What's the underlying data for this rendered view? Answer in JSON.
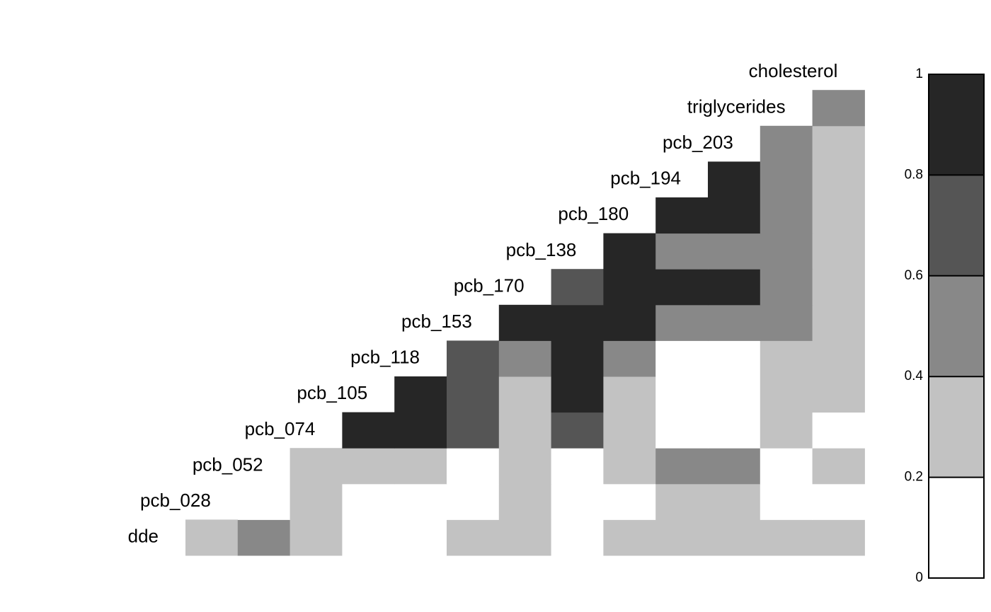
{
  "chart_data": {
    "type": "heatmap",
    "labels": [
      "dde",
      "pcb_028",
      "pcb_052",
      "pcb_074",
      "pcb_105",
      "pcb_118",
      "pcb_153",
      "pcb_170",
      "pcb_138",
      "pcb_180",
      "pcb_194",
      "pcb_203",
      "triglycerides",
      "cholesterol"
    ],
    "values": [
      [
        0.3,
        0.5,
        0.3,
        0.1,
        0.1,
        0.3,
        0.3,
        0.1,
        0.3,
        0.3,
        0.3,
        0.3,
        0.3
      ],
      [
        null,
        0.1,
        0.3,
        0.1,
        0.1,
        0.1,
        0.3,
        0.1,
        0.1,
        0.3,
        0.3,
        0.1,
        0.1
      ],
      [
        null,
        null,
        0.3,
        0.3,
        0.3,
        0.1,
        0.3,
        0.1,
        0.3,
        0.5,
        0.5,
        0.1,
        0.3
      ],
      [
        null,
        null,
        null,
        0.9,
        0.9,
        0.7,
        0.3,
        0.7,
        0.3,
        0.1,
        0.1,
        0.3,
        0.1
      ],
      [
        null,
        null,
        null,
        null,
        0.9,
        0.7,
        0.3,
        0.9,
        0.3,
        0.1,
        0.1,
        0.3,
        0.3
      ],
      [
        null,
        null,
        null,
        null,
        null,
        0.7,
        0.5,
        0.9,
        0.5,
        0.1,
        0.1,
        0.3,
        0.3
      ],
      [
        null,
        null,
        null,
        null,
        null,
        null,
        0.9,
        0.9,
        0.9,
        0.5,
        0.5,
        0.5,
        0.3
      ],
      [
        null,
        null,
        null,
        null,
        null,
        null,
        null,
        0.7,
        0.9,
        0.9,
        0.9,
        0.5,
        0.3
      ],
      [
        null,
        null,
        null,
        null,
        null,
        null,
        null,
        null,
        0.9,
        0.5,
        0.5,
        0.5,
        0.3
      ],
      [
        null,
        null,
        null,
        null,
        null,
        null,
        null,
        null,
        null,
        0.9,
        0.9,
        0.5,
        0.3
      ],
      [
        null,
        null,
        null,
        null,
        null,
        null,
        null,
        null,
        null,
        null,
        0.9,
        0.5,
        0.3
      ],
      [
        null,
        null,
        null,
        null,
        null,
        null,
        null,
        null,
        null,
        null,
        null,
        0.5,
        0.3
      ],
      [
        null,
        null,
        null,
        null,
        null,
        null,
        null,
        null,
        null,
        null,
        null,
        null,
        0.5
      ]
    ],
    "clim": [
      0,
      1
    ],
    "cticks": [
      0,
      0.2,
      0.4,
      0.6,
      0.8,
      1
    ],
    "colors": [
      "#ffffff",
      "#c2c2c2",
      "#888888",
      "#555555",
      "#262626"
    ]
  }
}
